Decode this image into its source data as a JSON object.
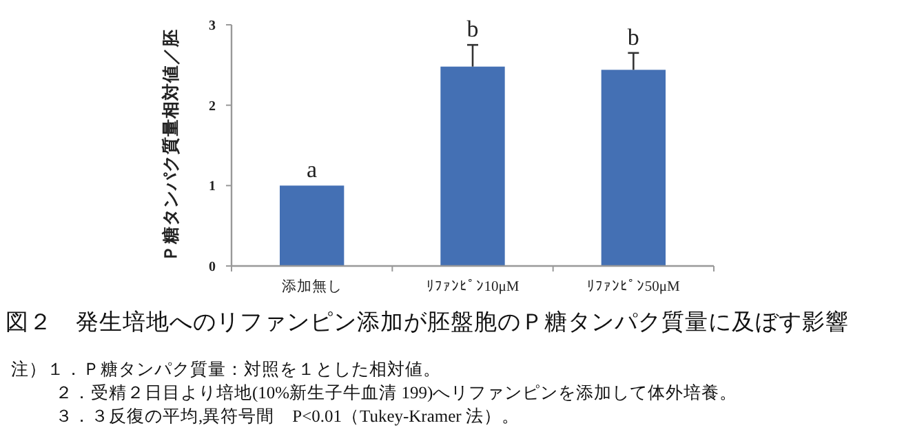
{
  "chart_data": {
    "type": "bar",
    "title": "図２　発生培地へのリファンピン添加が胚盤胞のＰ糖タンパク質量に及ぼす影響",
    "ylabel": "Ｐ糖タンパク質量相対値／胚",
    "categories": [
      "添加無し",
      "ﾘﾌｧﾝﾋﾟﾝ10μM",
      "ﾘﾌｧﾝﾋﾟﾝ50μM"
    ],
    "values": [
      1.0,
      2.48,
      2.44
    ],
    "errors": [
      null,
      [
        2.48,
        2.75
      ],
      [
        2.44,
        2.65
      ]
    ],
    "color": "#4470b4",
    "ylim": [
      0,
      3
    ],
    "yticks": [
      0,
      1,
      2,
      3
    ],
    "grid": false,
    "annotations": [
      "a",
      "b",
      "b",
      "注）１．Ｐ糖タンパク質量：対照を１とした相対値。",
      "２．受精２日目より培地(10%新生子牛血清 199)へリファンピンを添加して体外培養。",
      "３．３反復の平均,異符号間　P<0.01（Tukey-Kramer 法）。"
    ]
  }
}
